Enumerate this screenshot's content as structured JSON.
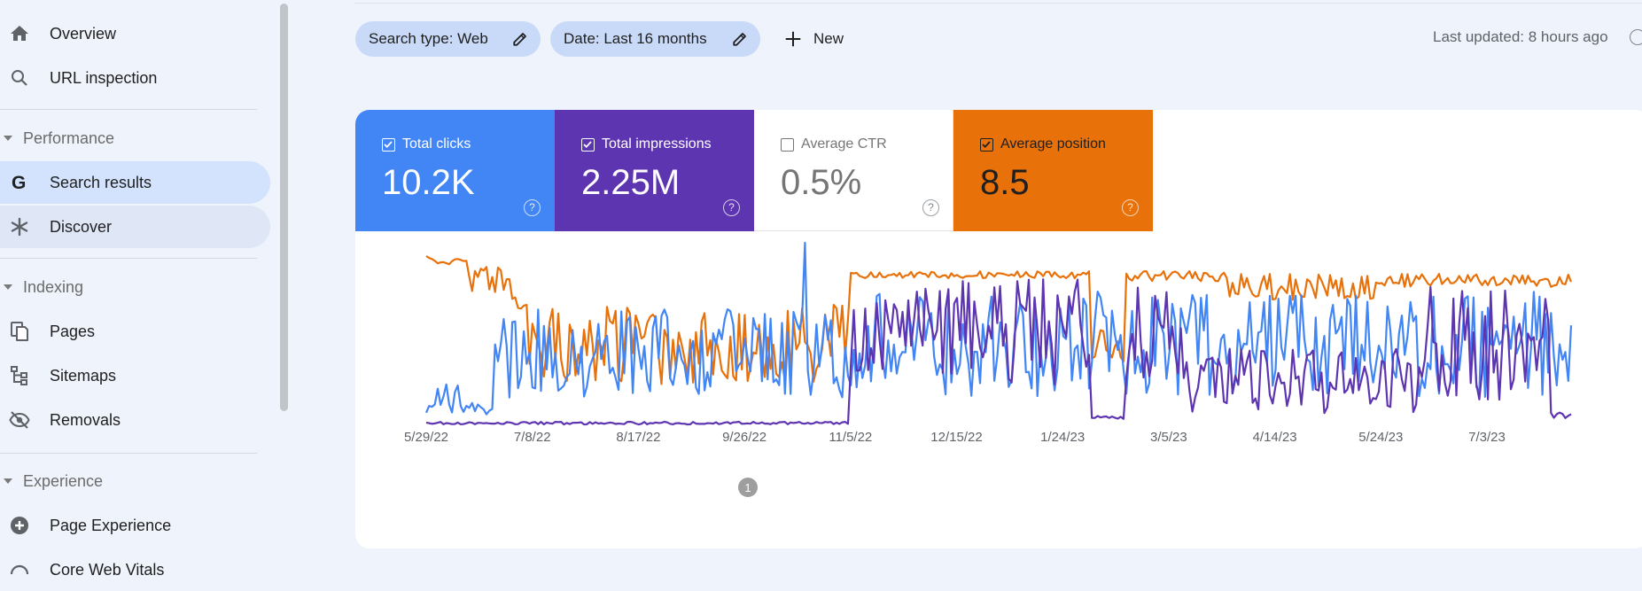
{
  "sidebar": {
    "items": [
      {
        "label": "Overview",
        "icon": "home-icon"
      },
      {
        "label": "URL inspection",
        "icon": "search-icon"
      }
    ],
    "performance": {
      "section_label": "Performance",
      "items": [
        {
          "label": "Search results",
          "icon": "google-g-icon"
        },
        {
          "label": "Discover",
          "icon": "asterisk-icon"
        }
      ]
    },
    "indexing": {
      "section_label": "Indexing",
      "items": [
        {
          "label": "Pages",
          "icon": "pages-icon"
        },
        {
          "label": "Sitemaps",
          "icon": "sitemap-icon"
        },
        {
          "label": "Removals",
          "icon": "eye-off-icon"
        }
      ]
    },
    "experience": {
      "section_label": "Experience",
      "items": [
        {
          "label": "Page Experience",
          "icon": "plus-circle-icon"
        },
        {
          "label": "Core Web Vitals",
          "icon": "gauge-icon"
        }
      ]
    }
  },
  "toolbar": {
    "search_type_chip": "Search type: Web",
    "date_chip": "Date: Last 16 months",
    "new_label": "New",
    "last_updated": "Last updated: 8 hours ago"
  },
  "metrics": [
    {
      "label": "Total clicks",
      "value": "10.2K",
      "checked": true,
      "color": "#4285f4"
    },
    {
      "label": "Total impressions",
      "value": "2.25M",
      "checked": true,
      "color": "#5e35b1"
    },
    {
      "label": "Average CTR",
      "value": "0.5%",
      "checked": false,
      "color": "#ffffff"
    },
    {
      "label": "Average position",
      "value": "8.5",
      "checked": true,
      "color": "#e8710a"
    }
  ],
  "annotation_marker": "1",
  "chart_data": {
    "type": "line",
    "x_tick_labels": [
      "5/29/22",
      "7/8/22",
      "8/17/22",
      "9/26/22",
      "11/5/22",
      "12/15/22",
      "1/24/23",
      "3/5/23",
      "4/14/23",
      "5/24/23",
      "7/3/23"
    ],
    "series": [
      {
        "name": "Total clicks",
        "color": "#4285f4"
      },
      {
        "name": "Total impressions",
        "color": "#5e35b1"
      },
      {
        "name": "Average position",
        "color": "#e8710a"
      }
    ],
    "grid": false,
    "legend": "none"
  }
}
